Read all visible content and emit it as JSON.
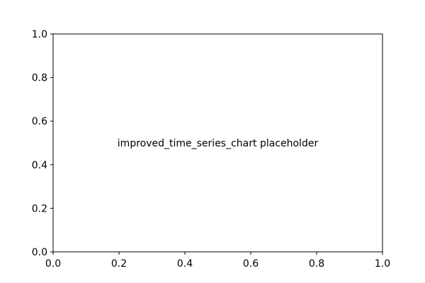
{
  "chart_data": {
    "type": "line",
    "title": "",
    "xlabel": "",
    "ylabel": "",
    "xlim": [
      0.0,
      1.0
    ],
    "ylim": [
      0.0,
      1.0
    ],
    "x_ticks": [
      "0.0",
      "0.2",
      "0.4",
      "0.6",
      "0.8",
      "1.0"
    ],
    "y_ticks": [
      "0.0",
      "0.2",
      "0.4",
      "0.6",
      "0.8",
      "1.0"
    ],
    "grid": false,
    "series": [],
    "annotations": [
      {
        "text": "improved_time_series_chart placeholder",
        "x": 0.5,
        "y": 0.5
      }
    ]
  }
}
